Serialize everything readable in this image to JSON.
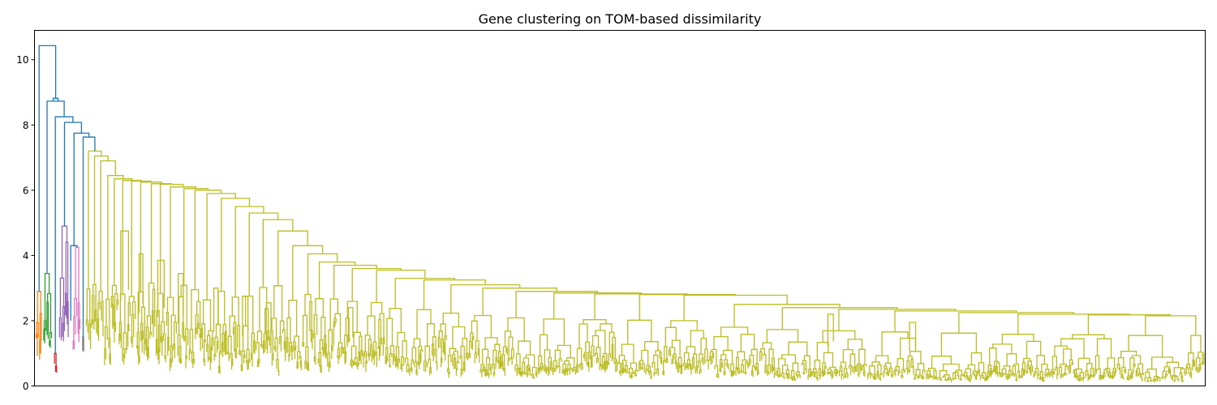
{
  "chart_data": {
    "type": "dendrogram",
    "title": "Gene clustering on TOM-based dissimilarity",
    "xlabel": "",
    "ylabel": "",
    "ylim": [
      0,
      10.9
    ],
    "yticks": [
      0,
      2,
      4,
      6,
      8,
      10
    ],
    "x_tick_labels": "none",
    "grid": false,
    "colors": {
      "above_threshold": "#1f77b4",
      "orange": "#ff7f0e",
      "green": "#2ca02c",
      "red": "#d62728",
      "purple": "#9467bd",
      "brown": "#8c564b",
      "pink": "#e377c2",
      "gray": "#7f7f7f",
      "olive": "#bcbd22"
    },
    "leaf_count_estimate": 2000,
    "top_merge_heights": [
      10.43,
      8.82,
      8.73,
      8.25,
      8.08,
      7.75,
      7.63
    ],
    "clusters": [
      {
        "name": "orange",
        "color": "#ff7f0e",
        "leaf_span": [
          0,
          0.007
        ],
        "top_height": 2.9
      },
      {
        "name": "green",
        "color": "#2ca02c",
        "leaf_span": [
          0.007,
          0.016
        ],
        "top_height": 3.45
      },
      {
        "name": "red",
        "color": "#d62728",
        "leaf_span": [
          0.016,
          0.02
        ],
        "top_height": 1.0
      },
      {
        "name": "purple",
        "color": "#9467bd",
        "leaf_span": [
          0.02,
          0.03
        ],
        "top_height": 4.9
      },
      {
        "name": "brown",
        "color": "#8c564b",
        "leaf_span": [
          0.03,
          0.032
        ],
        "top_height": 2.0
      },
      {
        "name": "pink",
        "color": "#e377c2",
        "leaf_span": [
          0.032,
          0.04
        ],
        "top_height": 4.25
      },
      {
        "name": "gray",
        "color": "#7f7f7f",
        "leaf_span": [
          0.04,
          0.043
        ],
        "top_height": 1.5
      },
      {
        "name": "olive",
        "color": "#bcbd22",
        "leaf_span": [
          0.043,
          1.0
        ],
        "top_height": 7.2
      }
    ],
    "olive_spine_heights": [
      7.2,
      7.05,
      6.9,
      6.45,
      6.35,
      6.3,
      6.28,
      6.25,
      6.2,
      6.18,
      6.1,
      6.05,
      6.0,
      5.9,
      5.75,
      5.5,
      5.3,
      5.1,
      4.75,
      4.3,
      4.05,
      3.8,
      3.7,
      3.6,
      3.55,
      3.3,
      3.25,
      3.1,
      3.0,
      2.9,
      2.85,
      2.82,
      2.8,
      2.78,
      2.5,
      2.4,
      2.35,
      2.3,
      2.25,
      2.2,
      2.18,
      2.15
    ],
    "olive_side_peaks": [
      {
        "pos": 0.077,
        "height": 4.75
      },
      {
        "pos": 0.091,
        "height": 4.05
      },
      {
        "pos": 0.108,
        "height": 3.85
      },
      {
        "pos": 0.125,
        "height": 3.45
      },
      {
        "pos": 0.155,
        "height": 3.0
      },
      {
        "pos": 0.18,
        "height": 2.75
      },
      {
        "pos": 0.2,
        "height": 2.55
      },
      {
        "pos": 0.27,
        "height": 2.4
      },
      {
        "pos": 0.68,
        "height": 2.2
      },
      {
        "pos": 0.75,
        "height": 1.95
      }
    ]
  }
}
